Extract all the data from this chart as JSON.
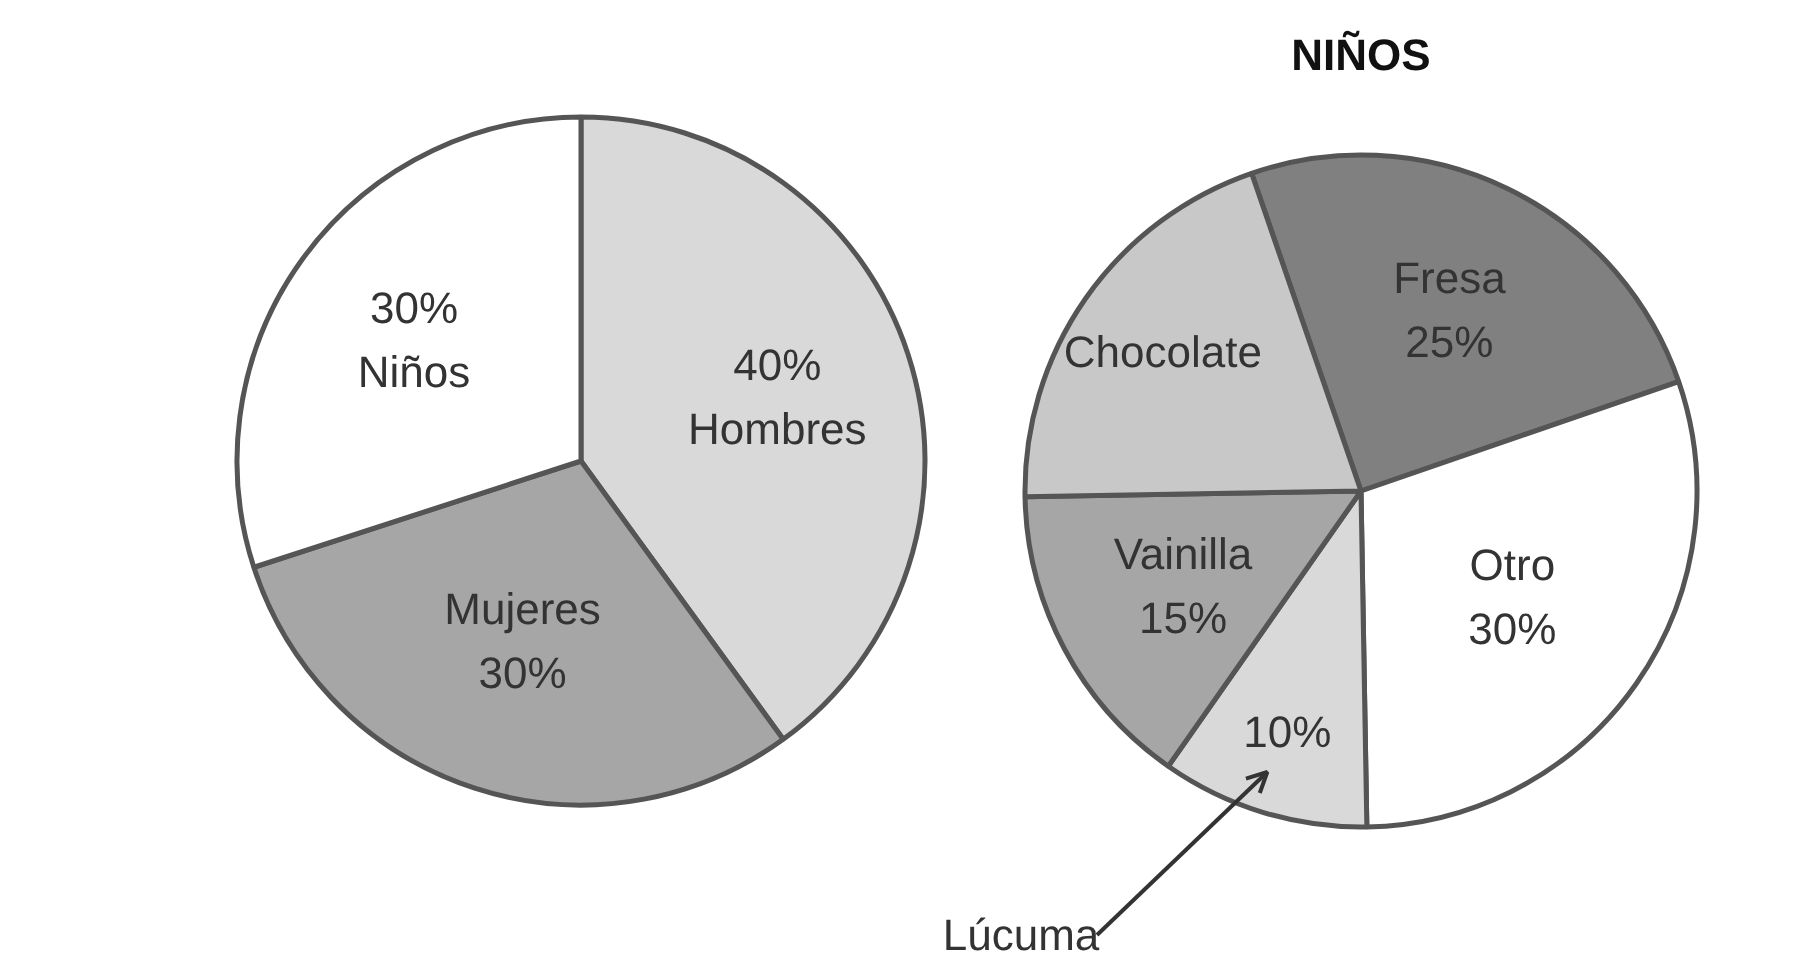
{
  "chart_data": [
    {
      "type": "pie",
      "categories": [
        "Hombres",
        "Mujeres",
        "Niños"
      ],
      "values": [
        40,
        30,
        30
      ],
      "value_labels": [
        "40%",
        "30%",
        "30%"
      ],
      "colors": [
        "#d9d9d9",
        "#a6a6a6",
        "#ffffff"
      ]
    },
    {
      "type": "pie",
      "title": "NIÑOS",
      "categories": [
        "Fresa",
        "Otro",
        "Lúcuma",
        "Vainilla",
        "Chocolate"
      ],
      "values": [
        25,
        30,
        10,
        15,
        20
      ],
      "value_labels": [
        "25%",
        "30%",
        "10%",
        "15%",
        null
      ],
      "colors": [
        "#808080",
        "#ffffff",
        "#d9d9d9",
        "#a6a6a6",
        "#c8c8c8"
      ]
    }
  ]
}
